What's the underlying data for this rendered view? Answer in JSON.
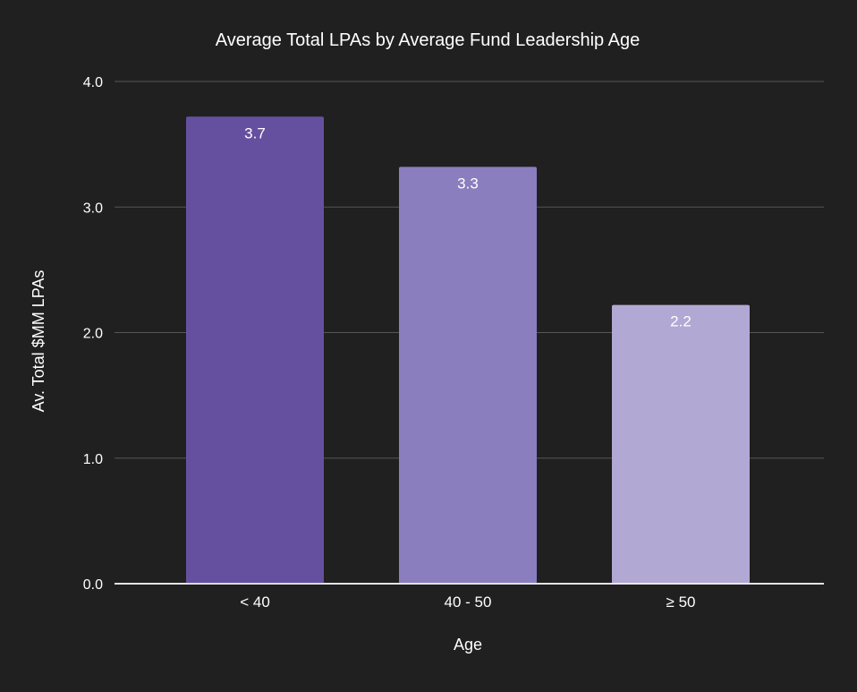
{
  "chart_data": {
    "type": "bar",
    "title": "Average Total LPAs by Average Fund Leadership Age",
    "xlabel": "Age",
    "ylabel": "Av. Total $MM LPAs",
    "categories": [
      "< 40",
      "40 - 50",
      "≥ 50"
    ],
    "values": [
      3.72,
      3.32,
      2.22
    ],
    "data_labels": [
      "3.7",
      "3.3",
      "2.2"
    ],
    "ylim": [
      0,
      4
    ],
    "yticks": [
      0,
      1,
      2,
      3,
      4
    ],
    "ytick_labels": [
      "0.0",
      "1.0",
      "2.0",
      "3.0",
      "4.0"
    ],
    "grid": true,
    "colors": [
      "#6550a0",
      "#8b7ebe",
      "#b2a8d4"
    ],
    "background": "#1f201f"
  }
}
